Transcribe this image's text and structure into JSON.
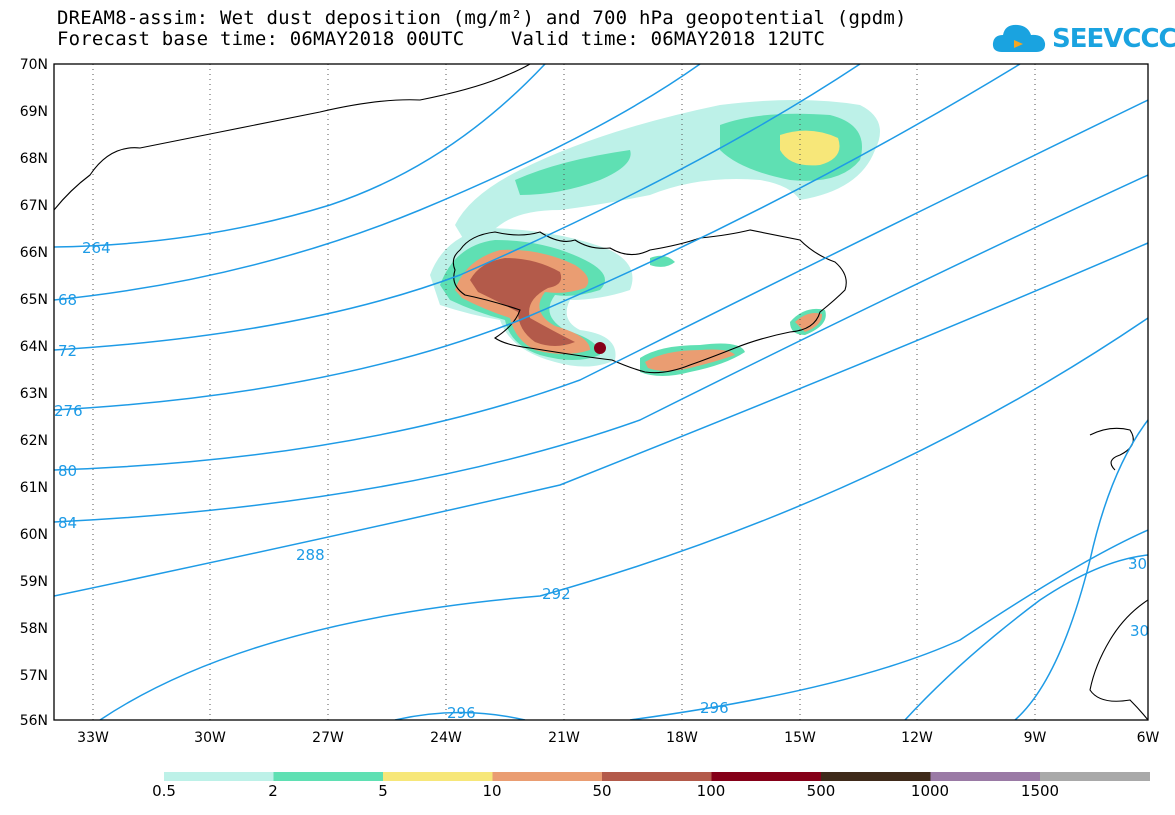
{
  "title": {
    "line1": "DREAM8-assim: Wet dust deposition (mg/m²) and 700 hPa geopotential (gpdm)",
    "line2": "Forecast base time: 06MAY2018 00UTC    Valid time: 06MAY2018 12UTC"
  },
  "logo": {
    "text": "SEEVCCC",
    "icon": "cloud-icon",
    "color": "#1aa3e0"
  },
  "axes": {
    "lat_labels": [
      "70N",
      "69N",
      "68N",
      "67N",
      "66N",
      "65N",
      "64N",
      "63N",
      "62N",
      "61N",
      "60N",
      "59N",
      "58N",
      "57N",
      "56N"
    ],
    "lon_labels": [
      "33W",
      "30W",
      "27W",
      "24W",
      "21W",
      "18W",
      "15W",
      "12W",
      "9W",
      "6W"
    ]
  },
  "contours": {
    "color": "#1e9be6",
    "labels": [
      "264",
      "68",
      "72",
      "276",
      "80",
      "84",
      "288",
      "292",
      "296",
      "296",
      "30",
      "30"
    ]
  },
  "colorbar": {
    "colors": [
      "#bdf1e8",
      "#5fe0b3",
      "#f7e779",
      "#ea9d72",
      "#b35a4a",
      "#850018",
      "#3f2a1a",
      "#9a7aa5",
      "#a9a9a9"
    ],
    "labels": [
      "0.5",
      "2",
      "5",
      "10",
      "50",
      "100",
      "500",
      "1000",
      "1500"
    ]
  }
}
